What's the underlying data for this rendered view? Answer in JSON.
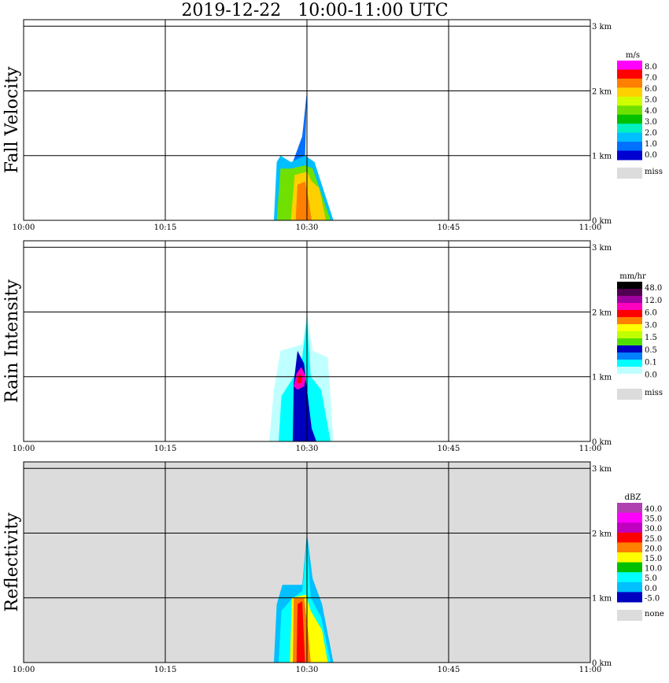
{
  "title": "2019-12-22   10:00-11:00 UTC",
  "x_ticks": [
    "10:00",
    "10:15",
    "10:30",
    "10:45",
    "11:00"
  ],
  "y_ticks": [
    "0 km",
    "1 km",
    "2 km",
    "3 km"
  ],
  "colors": {
    "missing": "#dcdcdc",
    "grid": "#000000"
  },
  "panels": [
    {
      "ylabel": "Fall Velocity",
      "background": "#ffffff",
      "legend": {
        "unit": "m/s",
        "labels": [
          "8.0",
          "7.0",
          "6.0",
          "5.0",
          "4.0",
          "3.0",
          "2.0",
          "1.0",
          "0.0"
        ],
        "colors": [
          "#ff00ff",
          "#ff0000",
          "#ff7f00",
          "#ffd000",
          "#d0ff00",
          "#70e000",
          "#00c000",
          "#00f0c0",
          "#00bfff",
          "#0070ff",
          "#0000d0"
        ],
        "missing_label": "miss"
      }
    },
    {
      "ylabel": "Rain Intensity",
      "background": "#ffffff",
      "legend": {
        "unit": "mm/hr",
        "labels": [
          "48.0",
          "12.0",
          "6.0",
          "3.0",
          "1.5",
          "0.5",
          "0.1",
          "0.0"
        ],
        "colors": [
          "#000000",
          "#500050",
          "#a000a0",
          "#ff00c0",
          "#ff0000",
          "#ff8000",
          "#ffff00",
          "#c0ff00",
          "#50e000",
          "#0000c0",
          "#0080ff",
          "#00ffff",
          "#c0ffff",
          "#ffffff"
        ],
        "missing_label": "miss"
      }
    },
    {
      "ylabel": "Reflectivity",
      "background": "#dcdcdc",
      "legend": {
        "unit": "dBZ",
        "labels": [
          "40.0",
          "35.0",
          "30.0",
          "25.0",
          "20.0",
          "15.0",
          "10.0",
          "5.0",
          "0.0",
          "-5.0"
        ],
        "colors": [
          "#b040b0",
          "#ff00ff",
          "#c000c0",
          "#ff0000",
          "#ff7f00",
          "#ffff00",
          "#00c000",
          "#00ffff",
          "#00c0ff",
          "#0000c0"
        ],
        "missing_label": "none"
      }
    }
  ],
  "chart_data": {
    "type": "heatmap",
    "title": "2019-12-22   10:00-11:00 UTC",
    "xlabel": "",
    "x_range": [
      "10:00",
      "11:00"
    ],
    "ylabel_units": "km",
    "ylim": [
      0,
      3.1
    ],
    "grid": true,
    "legend_placement": "right",
    "series": [
      {
        "name": "Fall Velocity",
        "unit": "m/s"
      },
      {
        "name": "Rain Intensity",
        "unit": "mm/hr"
      },
      {
        "name": "Reflectivity",
        "unit": "dBZ"
      }
    ]
  }
}
